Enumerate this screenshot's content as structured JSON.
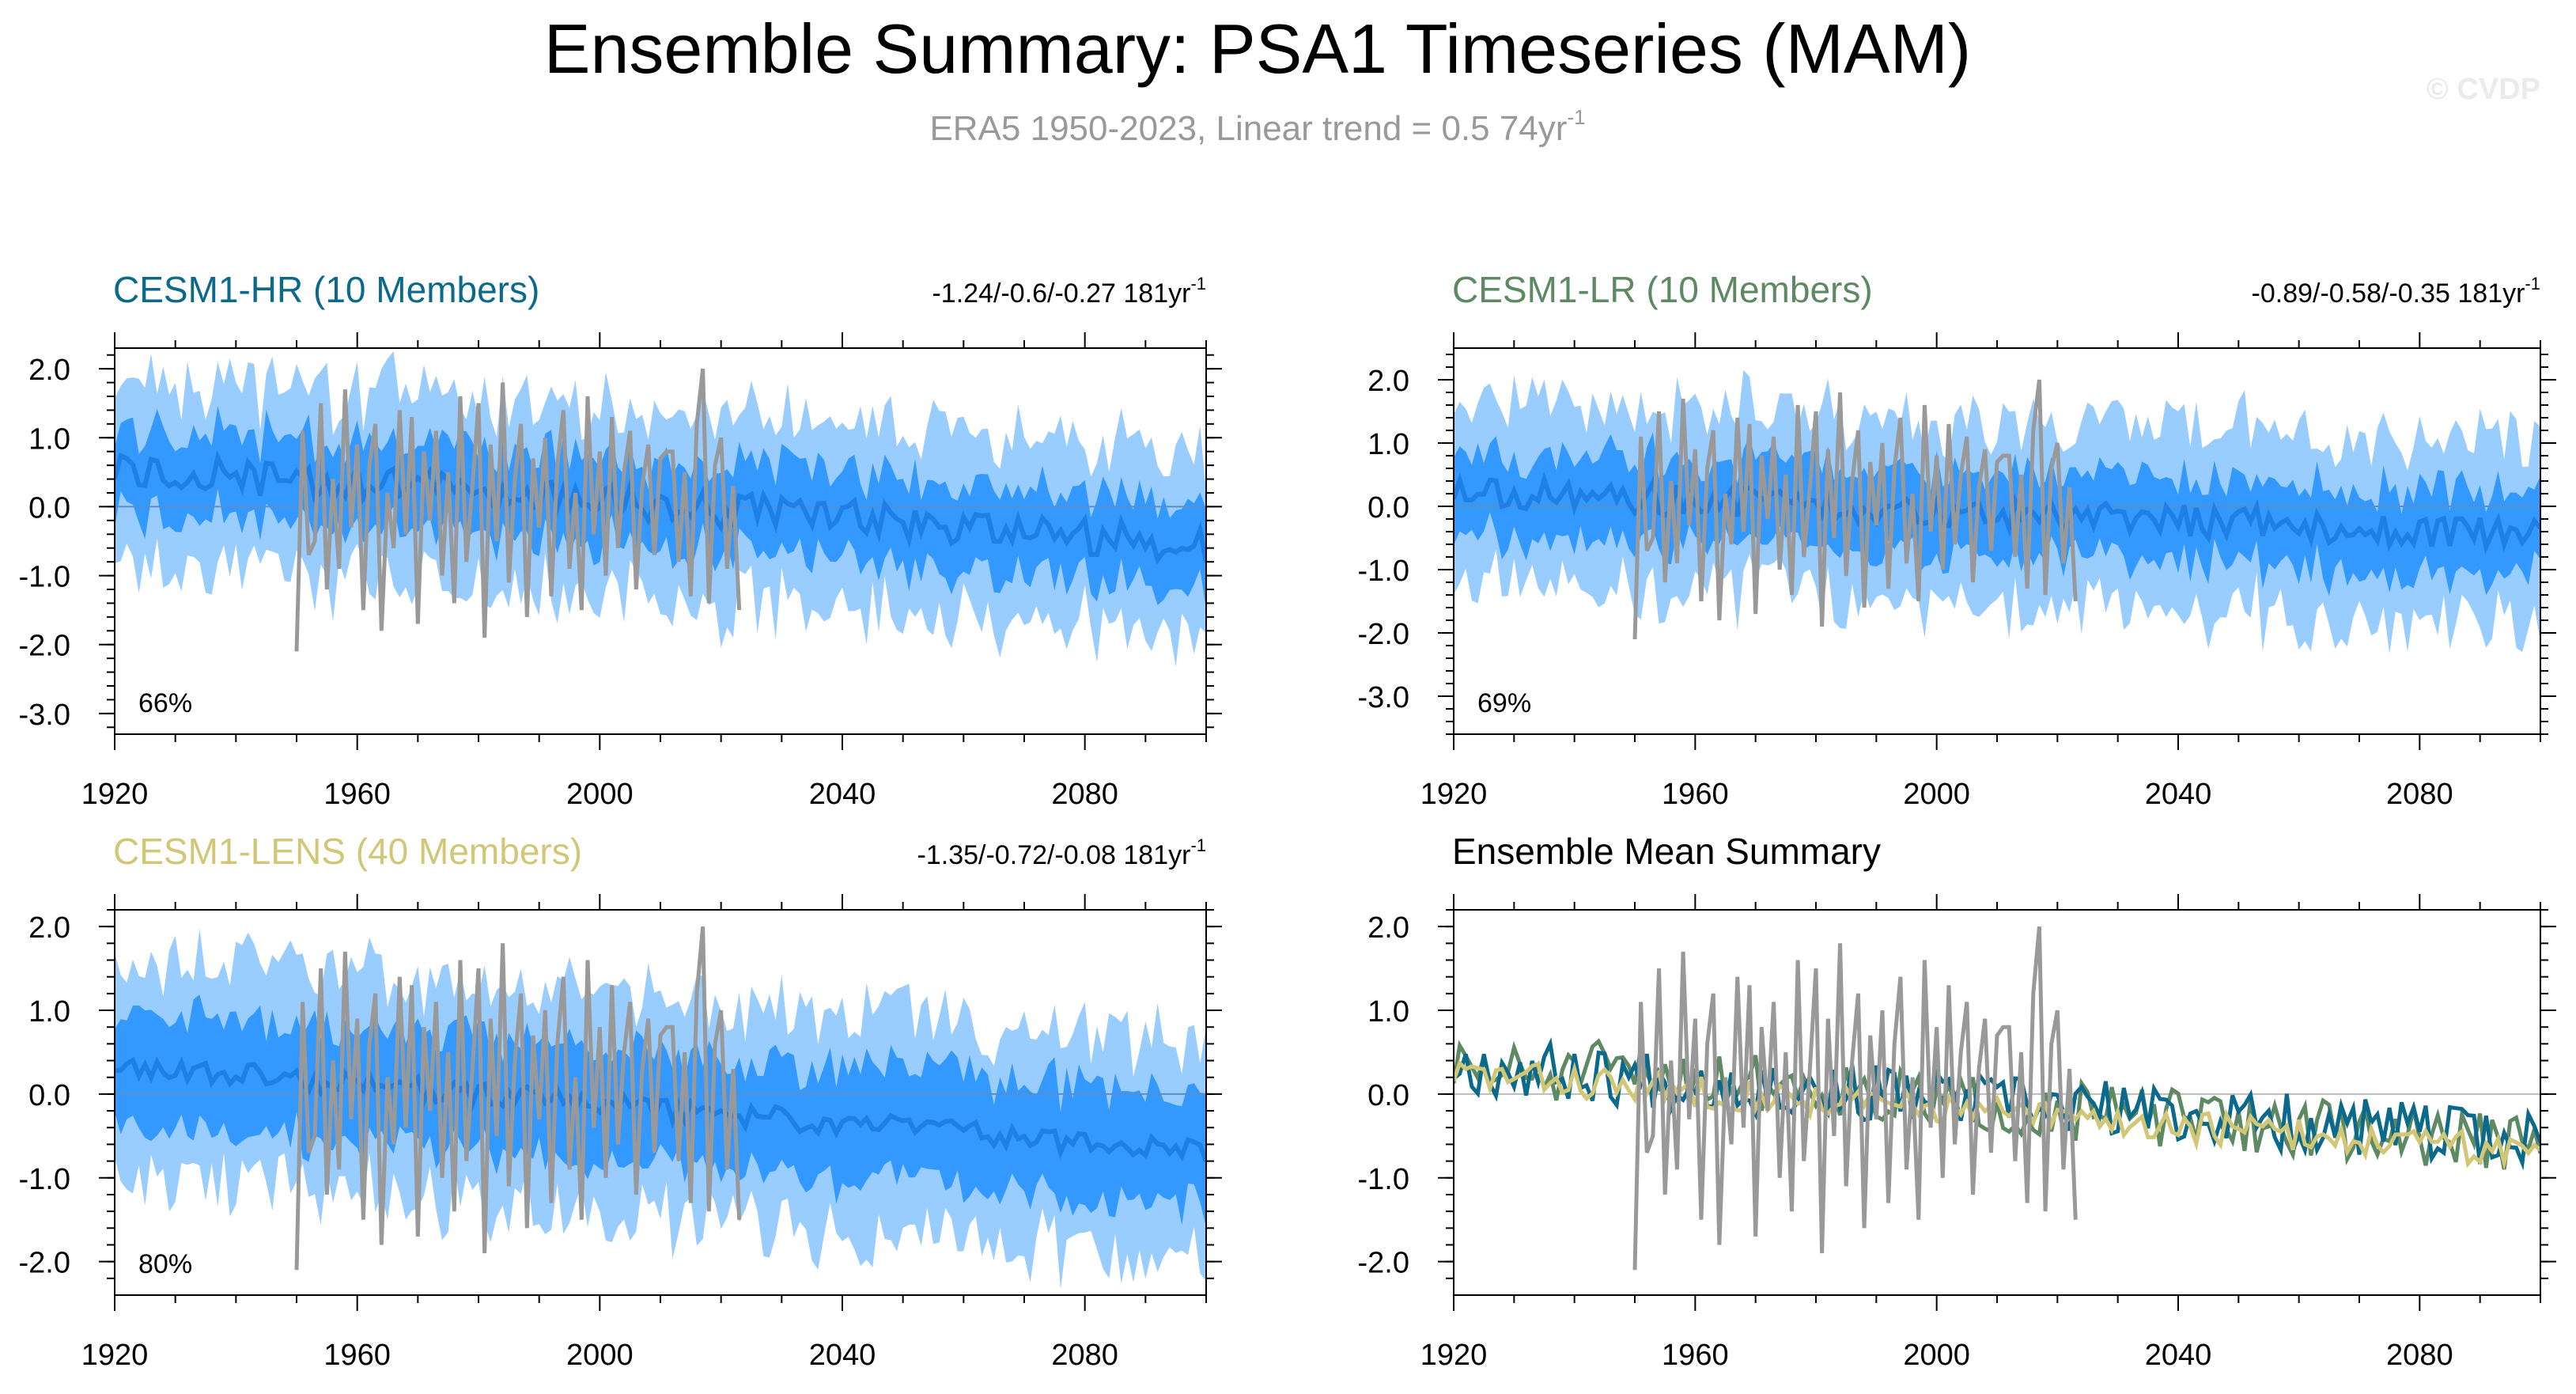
{
  "page": {
    "title": "Ensemble Summary: PSA1 Timeseries (MAM)",
    "subtitle": "ERA5 1950-2023, Linear trend = 0.5 74yr",
    "subtitle_sup": "-1",
    "copyright": "© CVDP"
  },
  "colors": {
    "shade_outer": "#99ccff",
    "shade_inner": "#3399ff",
    "mean_line": "#1e7fe6",
    "obs": "#999999",
    "hr": "#0b6a8c",
    "lr": "#5e8a63",
    "lens": "#d1c777"
  },
  "chart_data": [
    {
      "id": "hr",
      "type": "area",
      "title": "CESM1-HR (10 Members)",
      "title_color": "#0b6a8c",
      "trend_label": "-1.24/-0.6/-0.27 181yr",
      "trend_sup": "-1",
      "pct_label": "66%",
      "xlim": [
        1920,
        2100
      ],
      "ylim": [
        -3.3,
        2.3
      ],
      "xticks": [
        1920,
        1960,
        2000,
        2040,
        2080
      ],
      "yticks": [
        2.0,
        1.0,
        0.0,
        -1.0,
        -2.0,
        -3.0
      ],
      "ytick_labels": [
        "2.0",
        "1.0",
        "0.0",
        "-1.0",
        "-2.0",
        "-3.0"
      ],
      "ensemble": {
        "start_year": 1920,
        "end_year": 2100,
        "mean_start": 0.55,
        "mean_end": -0.55,
        "outer_halfwidth": 1.35,
        "inner_halfwidth": 0.62,
        "noise": 0.28,
        "seed": 11
      },
      "series": [
        {
          "name": "Ensemble Mean",
          "color": "#1e7fe6"
        },
        {
          "name": "ERA5",
          "color": "#999999"
        }
      ]
    },
    {
      "id": "lr",
      "type": "area",
      "title": "CESM1-LR (10 Members)",
      "title_color": "#5e8a63",
      "trend_label": "-0.89/-0.58/-0.35 181yr",
      "trend_sup": "-1",
      "pct_label": "69%",
      "xlim": [
        1920,
        2100
      ],
      "ylim": [
        -3.6,
        2.5
      ],
      "xticks": [
        1920,
        1960,
        2000,
        2040,
        2080
      ],
      "yticks": [
        2.0,
        1.0,
        0.0,
        -1.0,
        -2.0,
        -3.0
      ],
      "ytick_labels": [
        "2.0",
        "1.0",
        "0.0",
        "-1.0",
        "-2.0",
        "-3.0"
      ],
      "ensemble": {
        "start_year": 1920,
        "end_year": 2100,
        "mean_start": 0.25,
        "mean_end": -0.45,
        "outer_halfwidth": 1.45,
        "inner_halfwidth": 0.65,
        "noise": 0.26,
        "seed": 23
      },
      "series": [
        {
          "name": "Ensemble Mean",
          "color": "#1e7fe6"
        },
        {
          "name": "ERA5",
          "color": "#999999"
        }
      ]
    },
    {
      "id": "lens",
      "type": "area",
      "title": "CESM1-LENS (40 Members)",
      "title_color": "#d1c777",
      "trend_label": "-1.35/-0.72/-0.08 181yr",
      "trend_sup": "-1",
      "pct_label": "80%",
      "xlim": [
        1920,
        2100
      ],
      "ylim": [
        -2.4,
        2.2
      ],
      "xticks": [
        1920,
        1960,
        2000,
        2040,
        2080
      ],
      "yticks": [
        2.0,
        1.0,
        0.0,
        -1.0,
        -2.0
      ],
      "ytick_labels": [
        "2.0",
        "1.0",
        "0.0",
        "-1.0",
        "-2.0"
      ],
      "ensemble": {
        "start_year": 1920,
        "end_year": 2100,
        "mean_start": 0.35,
        "mean_end": -0.7,
        "outer_halfwidth": 1.3,
        "inner_halfwidth": 0.68,
        "noise": 0.14,
        "seed": 37
      },
      "series": [
        {
          "name": "Ensemble Mean",
          "color": "#1e7fe6"
        },
        {
          "name": "ERA5",
          "color": "#999999"
        }
      ]
    },
    {
      "id": "summary",
      "type": "line",
      "title": "Ensemble Mean Summary",
      "title_color": "#000000",
      "xlim": [
        1920,
        2100
      ],
      "ylim": [
        -2.4,
        2.2
      ],
      "xticks": [
        1920,
        1960,
        2000,
        2040,
        2080
      ],
      "yticks": [
        2.0,
        1.0,
        0.0,
        -1.0,
        -2.0
      ],
      "ytick_labels": [
        "2.0",
        "1.0",
        "0.0",
        "-1.0",
        "-2.0"
      ],
      "series": [
        {
          "name": "CESM1-HR",
          "color": "#0b6a8c"
        },
        {
          "name": "CESM1-LR",
          "color": "#5e8a63"
        },
        {
          "name": "CESM1-LENS",
          "color": "#d1c777"
        },
        {
          "name": "ERA5",
          "color": "#999999"
        }
      ]
    }
  ],
  "observations": {
    "name": "ERA5",
    "start_year": 1950,
    "values": [
      -2.1,
      1.1,
      -0.7,
      -0.5,
      1.5,
      -1.2,
      0.4,
      -0.9,
      1.7,
      -0.3,
      0.9,
      -1.5,
      0.6,
      1.2,
      -1.8,
      0.2,
      -0.6,
      1.4,
      -0.4,
      1.3,
      -1.7,
      0.8,
      -0.2,
      1.1,
      -1.0,
      0.5,
      -1.4,
      1.6,
      -0.8,
      0.3,
      1.5,
      -1.9,
      0.9,
      -0.5,
      1.8,
      -1.1,
      0.4,
      1.2,
      -1.6,
      0.7,
      -0.3,
      1.0,
      -1.3,
      0.6,
      1.4,
      -0.9,
      0.2,
      -1.5,
      1.6,
      -0.4,
      0.8,
      -1.0,
      1.3,
      -0.6,
      0.5,
      1.1,
      -1.2,
      0.3,
      0.9,
      -0.7,
      0.7,
      0.8,
      0.8,
      -0.8,
      0.5,
      -1.3,
      1.2,
      2.0,
      -1.4,
      0.6,
      1.0,
      -0.9,
      0.3,
      -1.5
    ]
  }
}
